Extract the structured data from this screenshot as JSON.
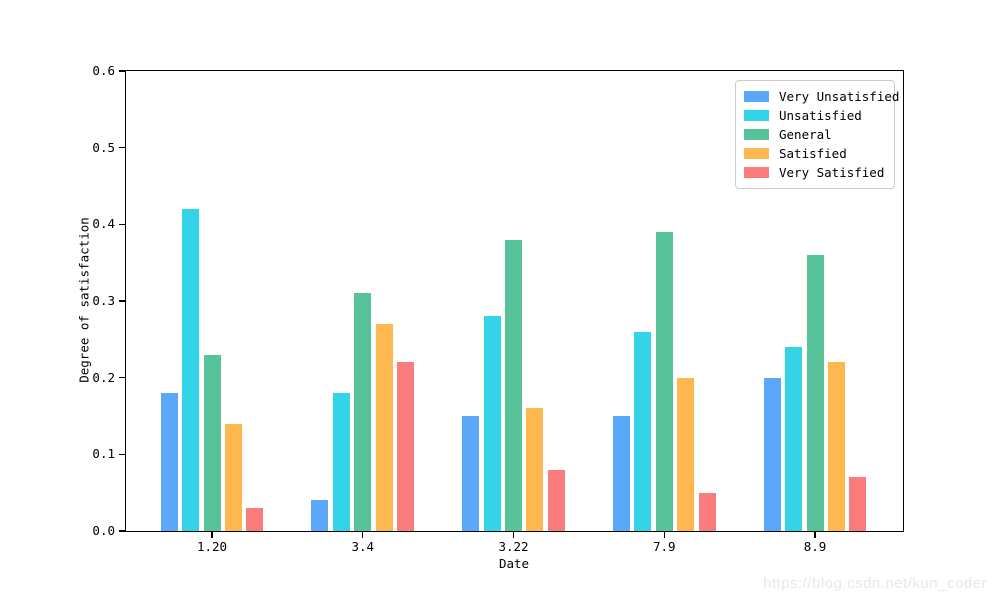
{
  "chart_data": {
    "type": "bar",
    "title": "",
    "xlabel": "Date",
    "ylabel": "Degree of satisfaction",
    "categories": [
      "1.20",
      "3.4",
      "3.22",
      "7.9",
      "8.9"
    ],
    "series": [
      {
        "name": "Very Unsatisfied",
        "color": "#5BA8FA",
        "values": [
          0.18,
          0.04,
          0.15,
          0.15,
          0.2
        ]
      },
      {
        "name": "Unsatisfied",
        "color": "#33D3E8",
        "values": [
          0.42,
          0.18,
          0.28,
          0.26,
          0.24
        ]
      },
      {
        "name": "General",
        "color": "#58C29B",
        "values": [
          0.23,
          0.31,
          0.38,
          0.39,
          0.36
        ]
      },
      {
        "name": "Satisfied",
        "color": "#FFB84F",
        "values": [
          0.14,
          0.27,
          0.16,
          0.2,
          0.22
        ]
      },
      {
        "name": "Very Satisfied",
        "color": "#FB7C7C",
        "values": [
          0.03,
          0.22,
          0.08,
          0.05,
          0.07
        ]
      }
    ],
    "ylim": [
      0.0,
      0.6
    ],
    "yticks": [
      "0.0",
      "0.1",
      "0.2",
      "0.3",
      "0.4",
      "0.5",
      "0.6"
    ],
    "legend_position": "upper right",
    "grid": false
  },
  "watermark": "https://blog.csdn.net/kun_coder"
}
